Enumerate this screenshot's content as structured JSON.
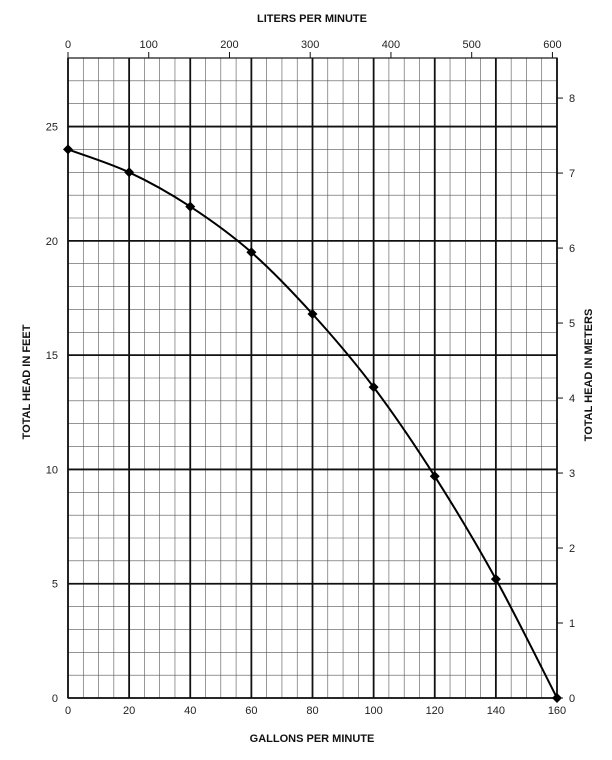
{
  "chart_data": {
    "type": "line",
    "top_axis_title": "LITERS PER MINUTE",
    "bottom_axis_title": "GALLONS PER MINUTE",
    "left_axis_title": "TOTAL HEAD IN FEET",
    "right_axis_title": "TOTAL HEAD IN METERS",
    "x": [
      0,
      20,
      40,
      60,
      80,
      100,
      120,
      140,
      160
    ],
    "series": [
      {
        "values": [
          24.0,
          23.0,
          21.5,
          19.5,
          16.8,
          13.6,
          9.7,
          5.2,
          0.0
        ]
      }
    ],
    "xlim": [
      0,
      160
    ],
    "ylim": [
      0,
      28
    ],
    "x_ticks": [
      "0",
      "20",
      "40",
      "60",
      "80",
      "100",
      "120",
      "140",
      "160"
    ],
    "y_ticks": [
      "0",
      "5",
      "10",
      "15",
      "20",
      "25"
    ],
    "top_ticks": [
      "0",
      "100",
      "200",
      "300",
      "400",
      "500",
      "600"
    ],
    "right_ticks": [
      "0",
      "1",
      "2",
      "3",
      "4",
      "5",
      "6",
      "7",
      "8"
    ],
    "grid": true,
    "marker": "diamond",
    "line_color": "#000000",
    "grid_color": "#555555"
  }
}
